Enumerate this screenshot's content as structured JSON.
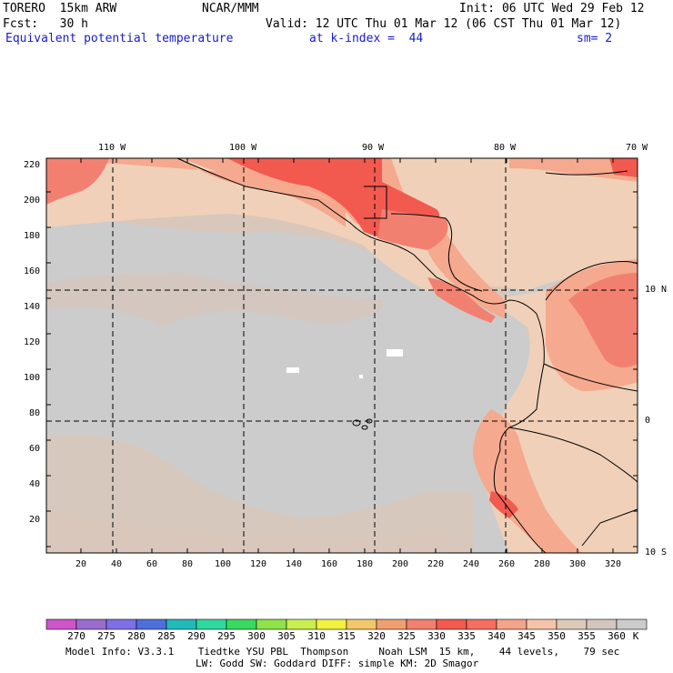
{
  "header": {
    "model": "TORERO  15km ARW",
    "org": "NCAR/MMM",
    "init": "Init: 06 UTC Wed 29 Feb 12",
    "fcst": "Fcst:   30 h",
    "valid": "Valid: 12 UTC Thu 01 Mar 12 (06 CST Thu 01 Mar 12)",
    "field": "Equivalent potential temperature",
    "level": "at k-index =  44",
    "smooth": "sm= 2"
  },
  "map": {
    "lon_labels": [
      "110 W",
      "100 W",
      "90 W",
      "80 W",
      "70 W"
    ],
    "lat_labels": [
      "10 N",
      "0",
      "10 S"
    ],
    "y_ticks": [
      "220",
      "200",
      "180",
      "160",
      "140",
      "120",
      "100",
      "80",
      "60",
      "40",
      "20"
    ],
    "x_ticks": [
      "20",
      "40",
      "60",
      "80",
      "100",
      "120",
      "140",
      "160",
      "180",
      "200",
      "220",
      "240",
      "260",
      "280",
      "300",
      "320"
    ]
  },
  "colorbar": {
    "unit": "K",
    "labels": [
      "270",
      "275",
      "280",
      "285",
      "290",
      "295",
      "300",
      "305",
      "310",
      "315",
      "320",
      "325",
      "330",
      "335",
      "340",
      "345",
      "350",
      "355",
      "360"
    ],
    "colors": [
      "#cc55cc",
      "#9b6ccf",
      "#7e6fe6",
      "#4e6edc",
      "#22b9b9",
      "#2fd8a0",
      "#3ad860",
      "#8fe24a",
      "#c8ee50",
      "#f2f040",
      "#f3c86a",
      "#f0a070",
      "#f08070",
      "#f25a50",
      "#f46e62",
      "#f4a48a",
      "#f4c4aa",
      "#dccab8",
      "#d2c6be",
      "#cccccc"
    ]
  },
  "footer": {
    "line1": "Model Info: V3.3.1    Tiedtke YSU PBL  Thompson     Noah LSM  15 km,    44 levels,    79 sec",
    "line2": "LW: Godd SW: Goddard DIFF: simple KM: 2D Smagor"
  },
  "colors": {
    "ocean": "#cccccc",
    "warm1": "#d9c7bb",
    "warm2": "#f0d0b8",
    "warm3": "#f5a98e",
    "warm4": "#f28070",
    "hot": "#f25a50"
  }
}
